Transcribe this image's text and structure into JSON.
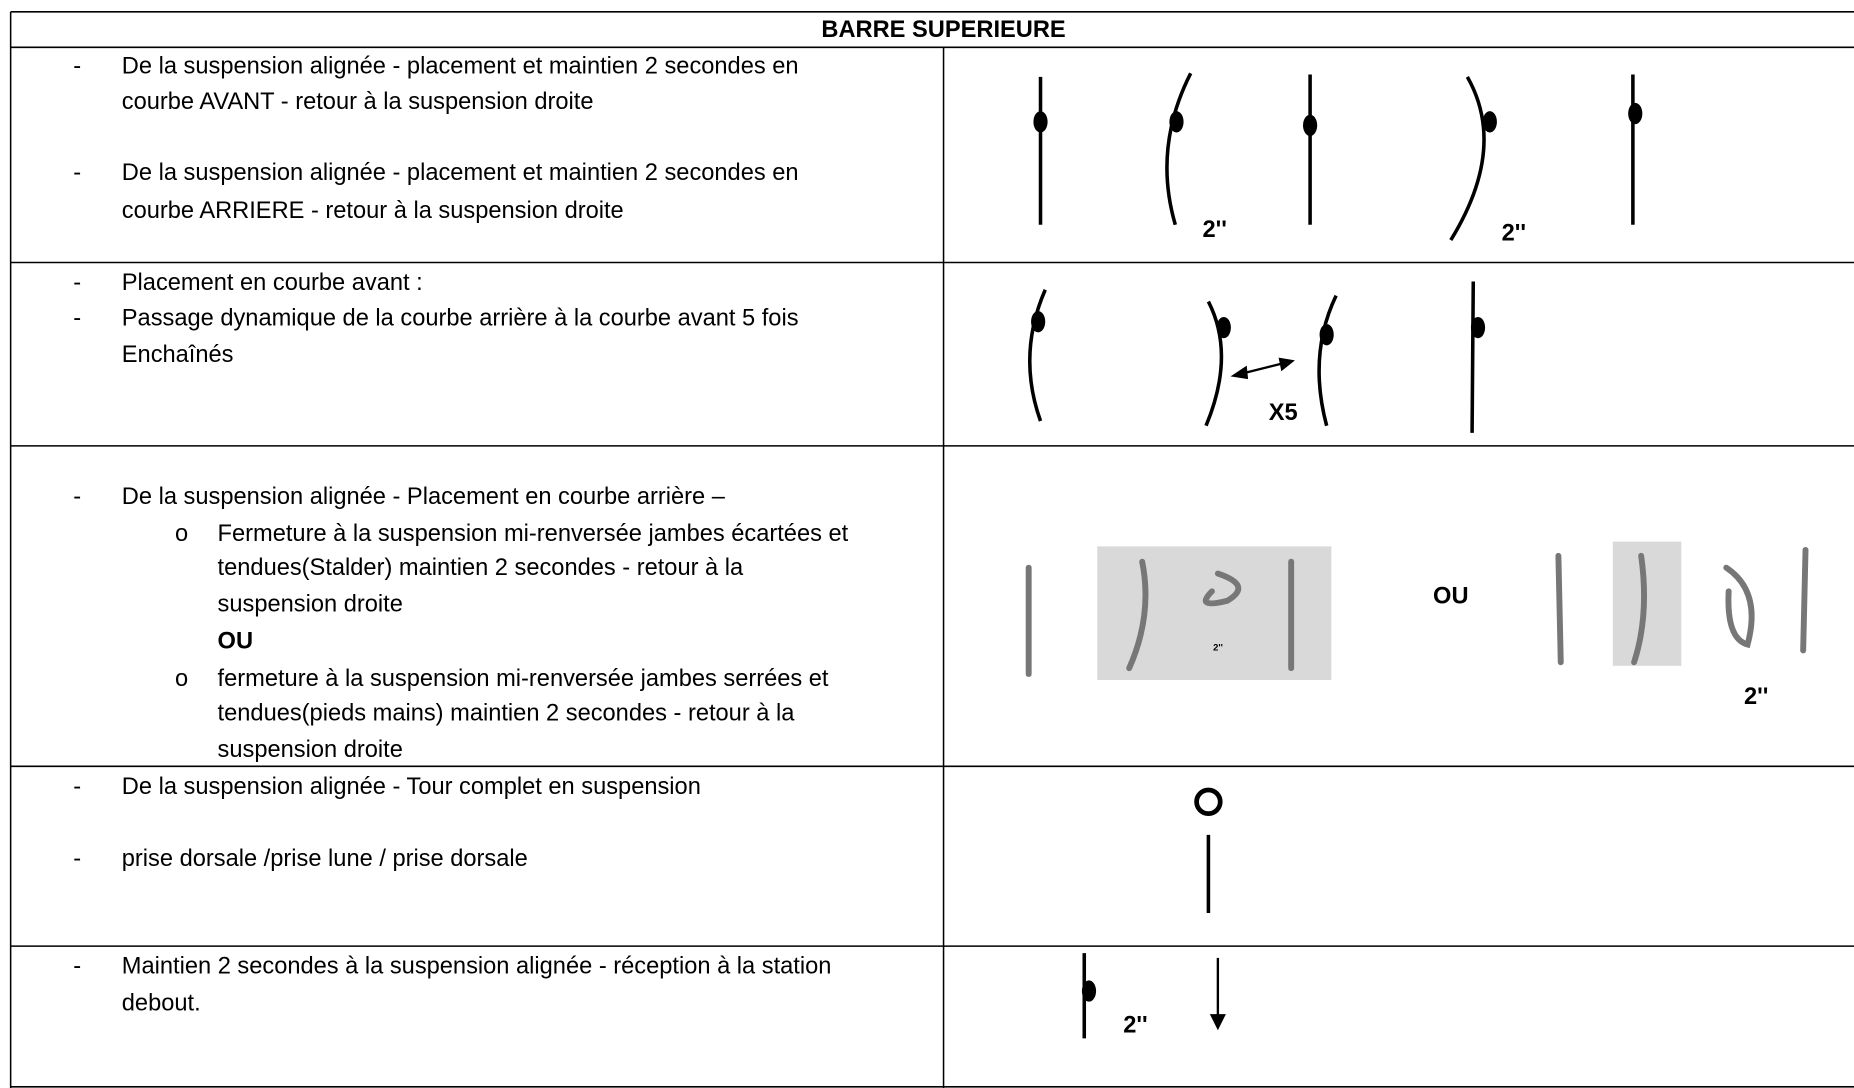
{
  "header": {
    "title": "BARRE SUPERIEURE"
  },
  "rows": [
    {
      "items": [
        {
          "marker": "-",
          "lines": [
            "De la suspension alignée - placement et maintien 2 secondes en",
            "courbe AVANT - retour à la suspension droite"
          ]
        },
        {
          "marker": "-",
          "lines": [
            "De la suspension alignée - placement et maintien 2 secondes en",
            "courbe ARRIERE - retour à la suspension droite"
          ]
        }
      ],
      "labels": [
        "2''",
        "2''"
      ]
    },
    {
      "items": [
        {
          "marker": "-",
          "lines": [
            "Placement en courbe avant :"
          ]
        },
        {
          "marker": "-",
          "lines": [
            " Passage dynamique de la courbe arrière à la courbe avant 5 fois",
            "Enchaînés"
          ]
        }
      ],
      "labels": [
        "X5"
      ]
    },
    {
      "items": [
        {
          "marker": "-",
          "lines": [
            "De la suspension alignée - Placement en courbe arrière –"
          ]
        },
        {
          "marker": "o",
          "lines": [
            "Fermeture à la suspension mi-renversée jambes écartées et",
            "tendues(Stalder) maintien 2 secondes - retour à la",
            "suspension droite"
          ]
        },
        {
          "lines": [
            "OU"
          ],
          "bold": true
        },
        {
          "marker": "o",
          "lines": [
            "fermeture à la suspension mi-renversée jambes serrées et",
            "tendues(pieds mains) maintien 2 secondes - retour à la",
            "suspension droite"
          ]
        }
      ],
      "labels": [
        "2''",
        "OU",
        "2''"
      ]
    },
    {
      "items": [
        {
          "marker": "-",
          "lines": [
            "De la suspension alignée - Tour complet en suspension"
          ]
        },
        {
          "marker": "-",
          "lines": [
            "prise dorsale /prise lune / prise dorsale"
          ]
        }
      ],
      "labels": []
    },
    {
      "items": [
        {
          "marker": "-",
          "lines": [
            "Maintien 2 secondes à la suspension alignée - réception à la station",
            "debout."
          ]
        }
      ],
      "labels": [
        "2''"
      ]
    }
  ]
}
